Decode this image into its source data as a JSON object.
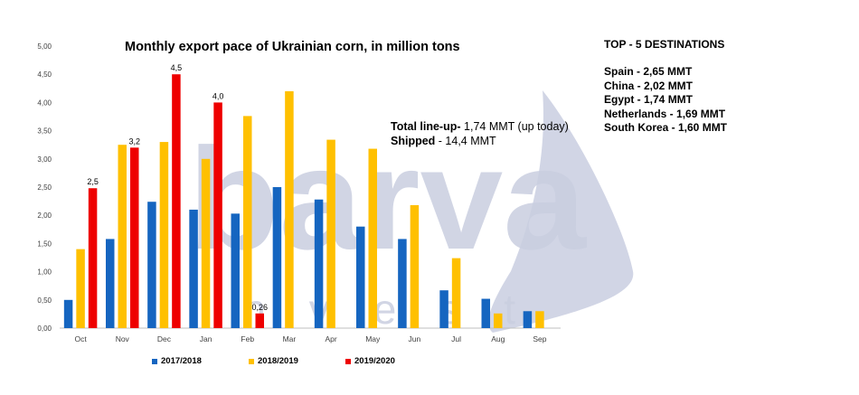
{
  "chart_data": {
    "type": "bar",
    "title": "Monthly export pace of Ukrainian corn, in million tons",
    "xlabel": "",
    "ylabel": "",
    "ylim": [
      0,
      5
    ],
    "yticks": [
      "0,00",
      "0,50",
      "1,00",
      "1,50",
      "2,00",
      "2,50",
      "3,00",
      "3,50",
      "4,00",
      "4,50",
      "5,00"
    ],
    "categories": [
      "Oct",
      "Nov",
      "Dec",
      "Jan",
      "Feb",
      "Mar",
      "Apr",
      "May",
      "Jun",
      "Jul",
      "Aug",
      "Sep"
    ],
    "series": [
      {
        "name": "2017/2018",
        "color": "#1565c0",
        "values": [
          0.5,
          1.58,
          2.24,
          2.1,
          2.03,
          2.5,
          2.28,
          1.8,
          1.58,
          0.67,
          0.52,
          0.3
        ]
      },
      {
        "name": "2018/2019",
        "color": "#ffc000",
        "values": [
          1.4,
          3.25,
          3.3,
          3.0,
          3.76,
          4.2,
          3.34,
          3.18,
          2.18,
          1.24,
          0.26,
          0.3
        ]
      },
      {
        "name": "2019/2020",
        "color": "#ee0000",
        "values": [
          2.48,
          3.2,
          4.5,
          4.0,
          0.26,
          null,
          null,
          null,
          null,
          null,
          null,
          null
        ]
      }
    ],
    "data_labels": [
      {
        "category": "Oct",
        "series": "2019/2020",
        "text": "2,5"
      },
      {
        "category": "Nov",
        "series": "2019/2020",
        "text": "3,2"
      },
      {
        "category": "Dec",
        "series": "2019/2020",
        "text": "4,5"
      },
      {
        "category": "Jan",
        "series": "2019/2020",
        "text": "4,0"
      },
      {
        "category": "Feb",
        "series": "2019/2020",
        "text": "0,26"
      }
    ],
    "legend_position": "bottom"
  },
  "annotation": {
    "line_up_label": "Total  line-up-",
    "line_up_value": " 1,74 MMT (up today)",
    "shipped_label": "Shipped",
    "shipped_value": " - 14,4 MMT"
  },
  "destinations": {
    "title": "TOP - 5 DESTINATIONS",
    "items": [
      "Spain - 2,65 MMT",
      "China - 2,02 MMT",
      "Egypt - 1,74 MMT",
      "Netherlands - 1,69 MMT",
      "South Korea - 1,60 MMT"
    ]
  },
  "watermark": {
    "brand": "barva",
    "tagline": "invest",
    "color": "#c9cee0"
  }
}
